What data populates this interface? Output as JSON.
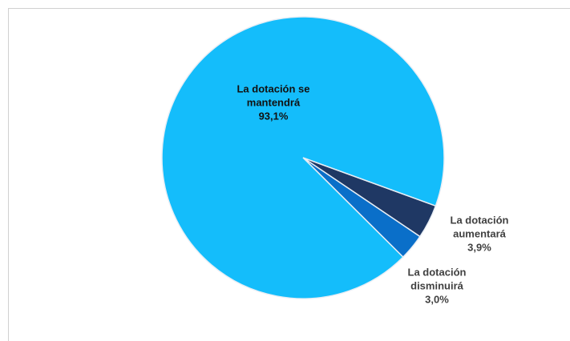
{
  "chart_data": {
    "type": "pie",
    "categories": [
      "La dotación aumentará",
      "La dotación disminuirá",
      "La dotación se mantendrá"
    ],
    "values": [
      3.9,
      3.0,
      93.1
    ],
    "value_labels": [
      "3,9%",
      "3,0%",
      "93,1%"
    ],
    "colors": [
      "#1f3864",
      "#0a6fc9",
      "#14bdfb"
    ]
  }
}
